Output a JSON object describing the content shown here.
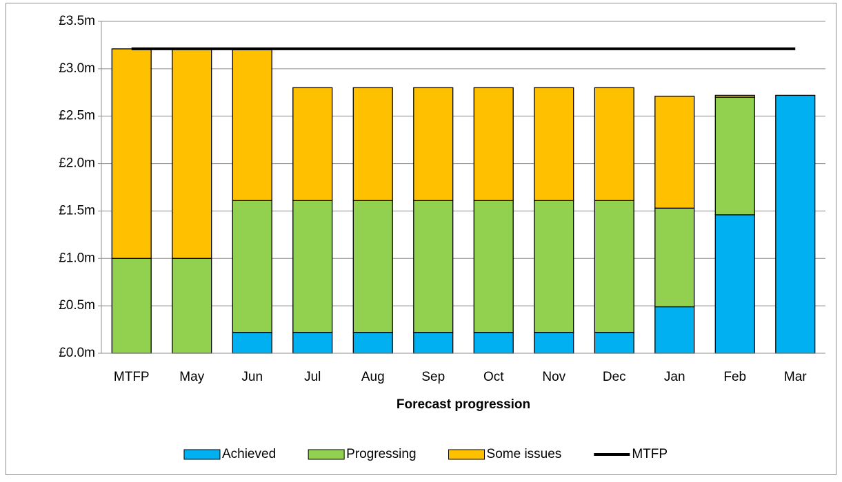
{
  "chart_data": {
    "type": "bar",
    "stacked": true,
    "x_label": "Forecast progression",
    "categories": [
      "MTFP",
      "May",
      "Jun",
      "Jul",
      "Aug",
      "Sep",
      "Oct",
      "Nov",
      "Dec",
      "Jan",
      "Feb",
      "Mar"
    ],
    "series": [
      {
        "name": "Achieved",
        "color": "#00b0f0",
        "values": [
          0,
          0,
          0.22,
          0.22,
          0.22,
          0.22,
          0.22,
          0.22,
          0.22,
          0.49,
          1.46,
          2.72
        ]
      },
      {
        "name": "Progressing",
        "color": "#92d050",
        "values": [
          1.0,
          1.0,
          1.39,
          1.39,
          1.39,
          1.39,
          1.39,
          1.39,
          1.39,
          1.04,
          1.24,
          0
        ]
      },
      {
        "name": "Some issues",
        "color": "#ffc000",
        "values": [
          2.21,
          2.21,
          1.59,
          1.19,
          1.19,
          1.19,
          1.19,
          1.19,
          1.19,
          1.18,
          0.02,
          0
        ]
      },
      {
        "name": "MTFP",
        "color": "#000000",
        "type": "line",
        "values": [
          3.21,
          3.21,
          3.21,
          3.21,
          3.21,
          3.21,
          3.21,
          3.21,
          3.21,
          3.21,
          3.21,
          3.21
        ]
      }
    ],
    "ylim": [
      0,
      3.5
    ],
    "yticks": [
      {
        "value": 0,
        "label": "£0.0m"
      },
      {
        "value": 0.5,
        "label": "£0.5m"
      },
      {
        "value": 1,
        "label": "£1.0m"
      },
      {
        "value": 1.5,
        "label": "£1.5m"
      },
      {
        "value": 2,
        "label": "£2.0m"
      },
      {
        "value": 2.5,
        "label": "£2.5m"
      },
      {
        "value": 3,
        "label": "£3.0m"
      },
      {
        "value": 3.5,
        "label": "£3.5m"
      }
    ],
    "grid": true,
    "legend": "bottom"
  }
}
